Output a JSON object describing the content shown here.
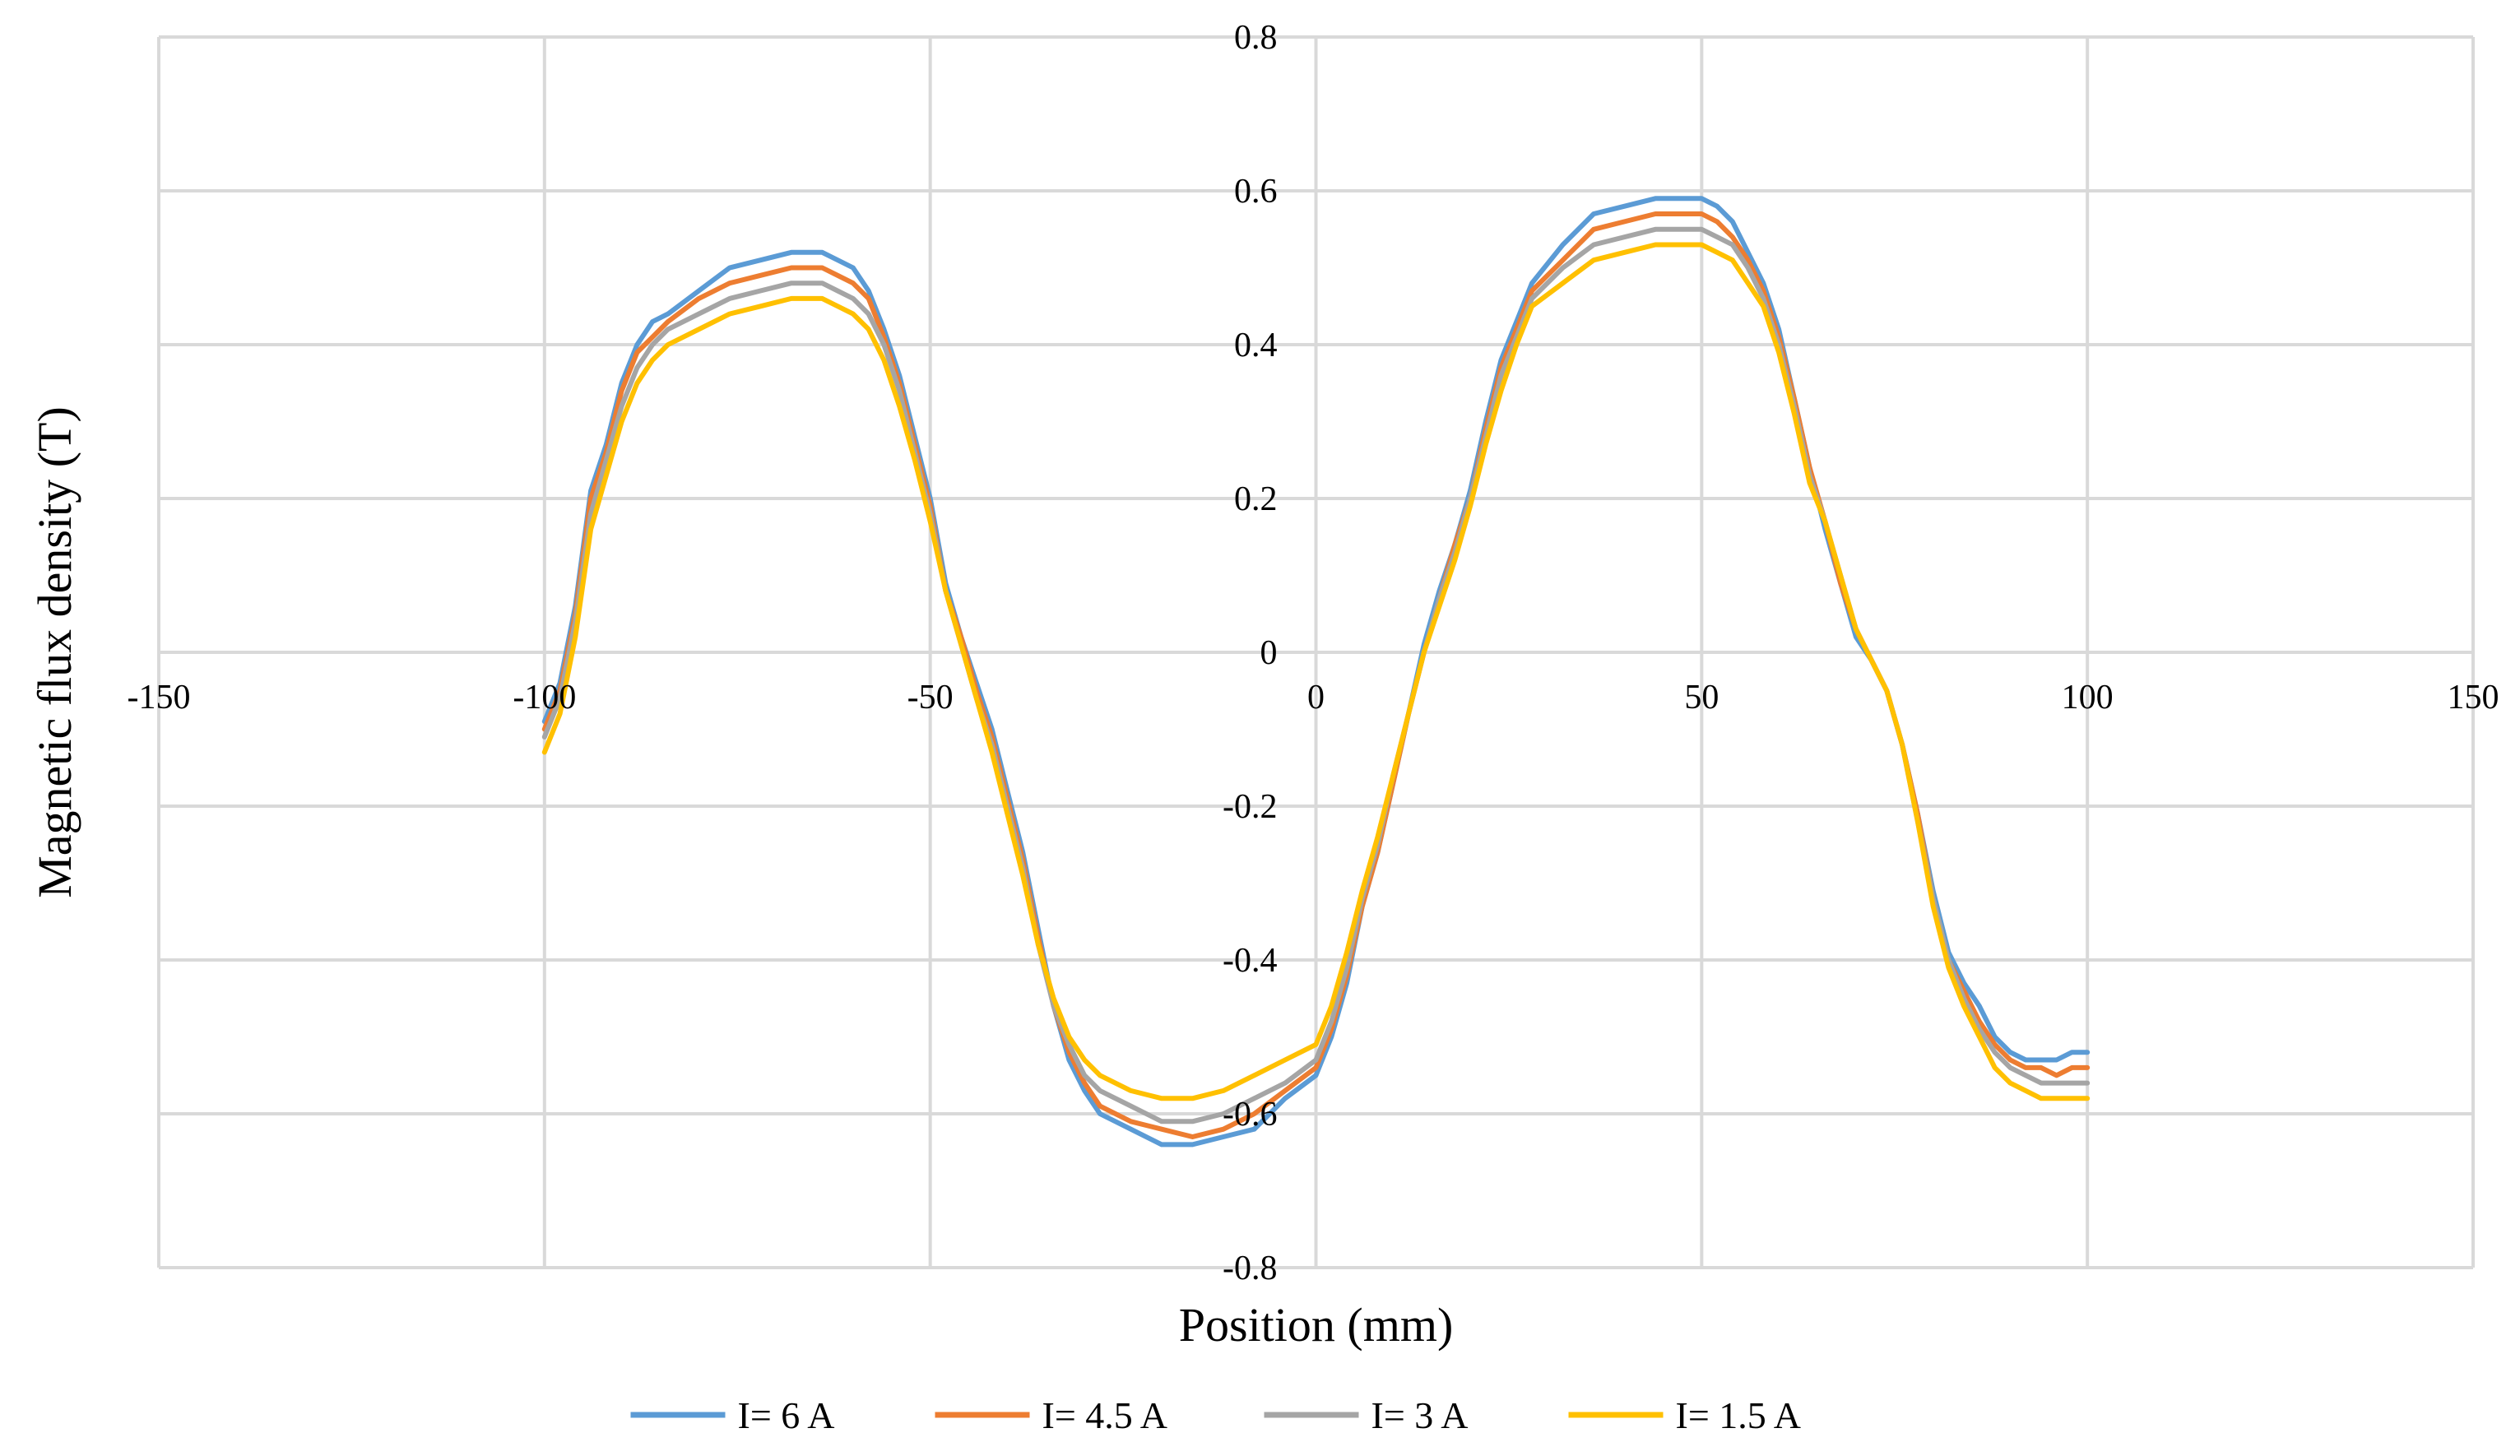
{
  "chart_data": {
    "type": "line",
    "title": "",
    "xlabel": "Position (mm)",
    "ylabel": "Magnetic  flux density (T)",
    "xlim": [
      -150,
      150
    ],
    "ylim": [
      -0.8,
      0.8
    ],
    "xticks": [
      -150,
      -100,
      -50,
      0,
      50,
      100,
      150
    ],
    "yticks": [
      -0.8,
      -0.6,
      -0.4,
      -0.2,
      0,
      0.2,
      0.4,
      0.6,
      0.8
    ],
    "xtick_labels": [
      "-150",
      "-100",
      "-50",
      "0",
      "50",
      "100",
      "150"
    ],
    "ytick_labels": [
      "-0.8",
      "-0.6",
      "-0.4",
      "-0.2",
      "0",
      "0.2",
      "0.4",
      "0.6",
      "0.8"
    ],
    "grid": true,
    "legend_position": "bottom",
    "x": [
      -100,
      -98,
      -96,
      -94,
      -92,
      -90,
      -88,
      -86,
      -84,
      -80,
      -76,
      -72,
      -68,
      -64,
      -60,
      -58,
      -56,
      -54,
      -52,
      -50,
      -48,
      -46,
      -44,
      -42,
      -40,
      -38,
      -36,
      -34,
      -32,
      -30,
      -28,
      -24,
      -20,
      -16,
      -12,
      -8,
      -4,
      0,
      2,
      4,
      6,
      8,
      10,
      12,
      14,
      16,
      18,
      20,
      22,
      24,
      26,
      28,
      32,
      36,
      40,
      44,
      48,
      50,
      52,
      54,
      56,
      58,
      60,
      62,
      64,
      66,
      68,
      70,
      72,
      74,
      76,
      78,
      80,
      82,
      84,
      86,
      88,
      90,
      92,
      94,
      96,
      98,
      100
    ],
    "series": [
      {
        "name": "I= 6 A",
        "color": "#5b9bd5",
        "values": [
          -0.09,
          -0.04,
          0.06,
          0.21,
          0.27,
          0.35,
          0.4,
          0.43,
          0.44,
          0.47,
          0.5,
          0.51,
          0.52,
          0.52,
          0.5,
          0.47,
          0.42,
          0.36,
          0.28,
          0.2,
          0.09,
          0.02,
          -0.04,
          -0.1,
          -0.18,
          -0.26,
          -0.36,
          -0.46,
          -0.53,
          -0.57,
          -0.6,
          -0.62,
          -0.64,
          -0.64,
          -0.63,
          -0.62,
          -0.58,
          -0.55,
          -0.5,
          -0.43,
          -0.33,
          -0.26,
          -0.17,
          -0.08,
          0.01,
          0.08,
          0.14,
          0.21,
          0.3,
          0.38,
          0.43,
          0.48,
          0.53,
          0.57,
          0.58,
          0.59,
          0.59,
          0.59,
          0.58,
          0.56,
          0.52,
          0.48,
          0.42,
          0.33,
          0.24,
          0.16,
          0.09,
          0.02,
          -0.01,
          -0.05,
          -0.12,
          -0.21,
          -0.31,
          -0.39,
          -0.43,
          -0.46,
          -0.5,
          -0.52,
          -0.53,
          -0.53,
          -0.53,
          -0.52,
          -0.52
        ]
      },
      {
        "name": "I= 4.5 A",
        "color": "#ed7d31",
        "values": [
          -0.1,
          -0.05,
          0.05,
          0.2,
          0.26,
          0.34,
          0.39,
          0.41,
          0.43,
          0.46,
          0.48,
          0.49,
          0.5,
          0.5,
          0.48,
          0.46,
          0.41,
          0.35,
          0.27,
          0.19,
          0.08,
          0.02,
          -0.05,
          -0.11,
          -0.19,
          -0.27,
          -0.37,
          -0.46,
          -0.52,
          -0.56,
          -0.59,
          -0.61,
          -0.62,
          -0.63,
          -0.62,
          -0.6,
          -0.57,
          -0.54,
          -0.49,
          -0.42,
          -0.33,
          -0.26,
          -0.17,
          -0.08,
          0.0,
          0.07,
          0.14,
          0.2,
          0.29,
          0.37,
          0.42,
          0.47,
          0.51,
          0.55,
          0.56,
          0.57,
          0.57,
          0.57,
          0.56,
          0.54,
          0.51,
          0.47,
          0.41,
          0.33,
          0.24,
          0.17,
          0.09,
          0.03,
          -0.01,
          -0.05,
          -0.12,
          -0.21,
          -0.32,
          -0.4,
          -0.44,
          -0.48,
          -0.51,
          -0.53,
          -0.54,
          -0.54,
          -0.55,
          -0.54,
          -0.54
        ]
      },
      {
        "name": "I= 3 A",
        "color": "#a5a5a5",
        "values": [
          -0.11,
          -0.06,
          0.04,
          0.18,
          0.25,
          0.32,
          0.37,
          0.4,
          0.42,
          0.44,
          0.46,
          0.47,
          0.48,
          0.48,
          0.46,
          0.44,
          0.4,
          0.34,
          0.26,
          0.18,
          0.08,
          0.01,
          -0.06,
          -0.12,
          -0.2,
          -0.28,
          -0.38,
          -0.46,
          -0.51,
          -0.55,
          -0.57,
          -0.59,
          -0.61,
          -0.61,
          -0.6,
          -0.58,
          -0.56,
          -0.53,
          -0.48,
          -0.41,
          -0.32,
          -0.25,
          -0.16,
          -0.08,
          0.0,
          0.07,
          0.13,
          0.2,
          0.28,
          0.36,
          0.41,
          0.46,
          0.5,
          0.53,
          0.54,
          0.55,
          0.55,
          0.55,
          0.54,
          0.53,
          0.5,
          0.46,
          0.4,
          0.32,
          0.23,
          0.17,
          0.1,
          0.03,
          -0.01,
          -0.05,
          -0.12,
          -0.22,
          -0.32,
          -0.4,
          -0.45,
          -0.49,
          -0.52,
          -0.54,
          -0.55,
          -0.56,
          -0.56,
          -0.56,
          -0.56
        ]
      },
      {
        "name": "I= 1.5 A",
        "color": "#ffc000",
        "values": [
          -0.13,
          -0.08,
          0.02,
          0.16,
          0.23,
          0.3,
          0.35,
          0.38,
          0.4,
          0.42,
          0.44,
          0.45,
          0.46,
          0.46,
          0.44,
          0.42,
          0.38,
          0.32,
          0.25,
          0.17,
          0.08,
          0.01,
          -0.06,
          -0.13,
          -0.21,
          -0.29,
          -0.38,
          -0.45,
          -0.5,
          -0.53,
          -0.55,
          -0.57,
          -0.58,
          -0.58,
          -0.57,
          -0.55,
          -0.53,
          -0.51,
          -0.46,
          -0.39,
          -0.31,
          -0.24,
          -0.16,
          -0.08,
          0.0,
          0.06,
          0.12,
          0.19,
          0.27,
          0.34,
          0.4,
          0.45,
          0.48,
          0.51,
          0.52,
          0.53,
          0.53,
          0.53,
          0.52,
          0.51,
          0.48,
          0.45,
          0.39,
          0.31,
          0.22,
          0.17,
          0.1,
          0.03,
          -0.01,
          -0.05,
          -0.12,
          -0.22,
          -0.33,
          -0.41,
          -0.46,
          -0.5,
          -0.54,
          -0.56,
          -0.57,
          -0.58,
          -0.58,
          -0.58,
          -0.58
        ]
      }
    ]
  }
}
